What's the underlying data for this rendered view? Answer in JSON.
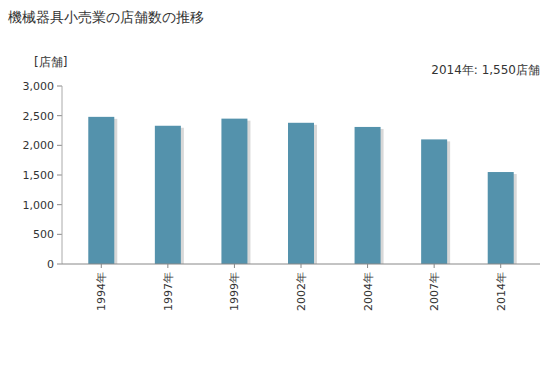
{
  "chart_data": {
    "type": "bar",
    "title": "機械器具小売業の店舗数の推移",
    "y_label": "[店舗]",
    "annotations": [
      "2014年: 1,550店舗"
    ],
    "categories": [
      "1994年",
      "1997年",
      "1999年",
      "2002年",
      "2004年",
      "2007年",
      "2014年"
    ],
    "values": [
      2480,
      2330,
      2450,
      2380,
      2310,
      2100,
      1550
    ],
    "color": "#5492ac",
    "ylim": [
      0,
      3000
    ],
    "yticks": [
      0,
      500,
      {
        "value": 1000,
        "label": "1,000"
      },
      {
        "value": 1500,
        "label": "1,500"
      },
      {
        "value": 2000,
        "label": "2,000"
      },
      {
        "value": 2500,
        "label": "2,500"
      },
      {
        "value": 3000,
        "label": "3,000"
      }
    ],
    "grid": false
  }
}
